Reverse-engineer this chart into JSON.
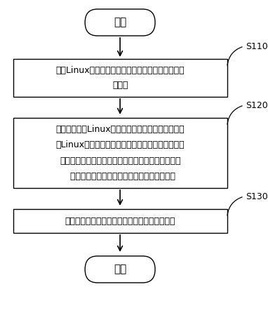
{
  "background_color": "#ffffff",
  "start_text": "开始",
  "end_text": "结束",
  "box1_lines": [
    "移除Linux内核内存中虚拟地址与物理地址的线性映",
    "射规则"
  ],
  "box2_lines": [
    "当接收到针对Linux内核内存的分配请求时，查找所",
    "述Linux内核内存中的可用物理页帧，并将所述可用",
    "物理页帧依次分配给连续的逻辑页；其中，所述分配",
    "  给连续的逻辑页的可用物理页帧连续或不连续"
  ],
  "box3_text": "维护所述逻辑页与可用物理页帧之间的映射关系",
  "label1": "S110",
  "label2": "S120",
  "label3": "S130",
  "text_color": "#000000",
  "font_size_cn": 9.0,
  "font_size_label": 9.0,
  "font_size_terminal": 11.0
}
